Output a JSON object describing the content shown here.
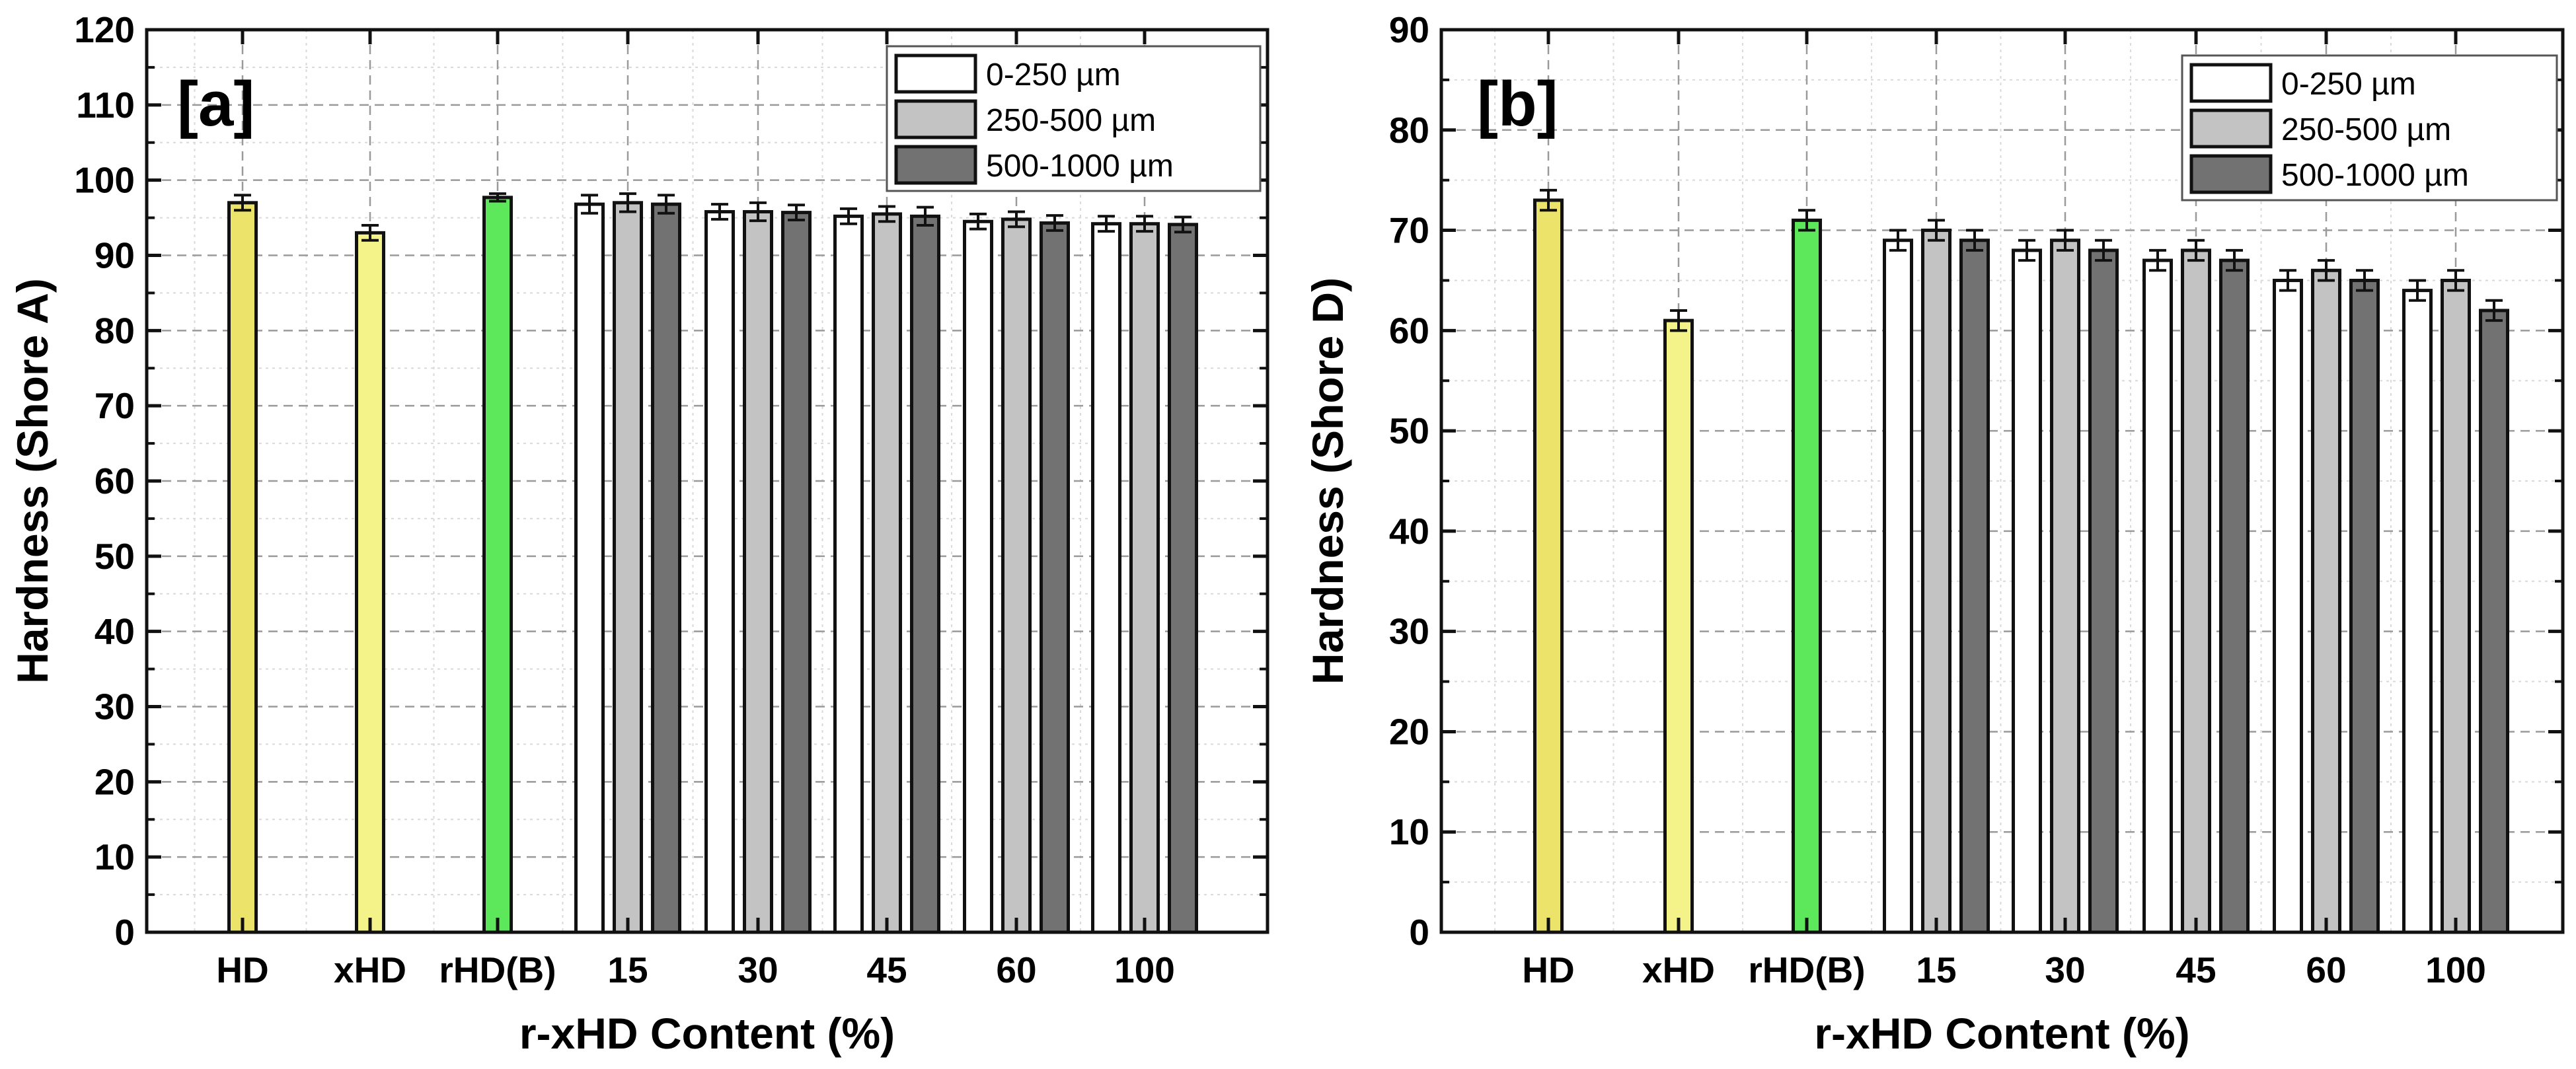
{
  "chart_data": [
    {
      "type": "bar",
      "panel_label": "[a]",
      "xlabel": "r-xHD Content (%)",
      "ylabel": "Hardness (Shore A)",
      "ylim": [
        0,
        120
      ],
      "yticks": [
        0,
        10,
        20,
        30,
        40,
        50,
        60,
        70,
        80,
        90,
        100,
        110,
        120
      ],
      "grid": true,
      "legend_position": "top-right",
      "categories": [
        "HD",
        "xHD",
        "rHD(B)",
        "15",
        "30",
        "45",
        "60",
        "100"
      ],
      "references": [
        {
          "category": "HD",
          "value": 97,
          "error": 1.0,
          "color": "#ece36a"
        },
        {
          "category": "xHD",
          "value": 93,
          "error": 1.0,
          "color": "#f4f38a"
        },
        {
          "category": "rHD(B)",
          "value": 97.7,
          "error": 0.5,
          "color": "#5ce85a"
        }
      ],
      "series": [
        {
          "name": "0-250 µm",
          "color": "#ffffff",
          "values": [
            null,
            null,
            null,
            96.8,
            95.8,
            95.2,
            94.5,
            94.2
          ],
          "errors": [
            null,
            null,
            null,
            1.2,
            1.0,
            1.0,
            1.0,
            1.0
          ]
        },
        {
          "name": "250-500 µm",
          "color": "#c3c3c3",
          "values": [
            null,
            null,
            null,
            97.0,
            95.8,
            95.5,
            94.8,
            94.2
          ],
          "errors": [
            null,
            null,
            null,
            1.2,
            1.2,
            1.0,
            1.0,
            1.0
          ]
        },
        {
          "name": "500-1000 µm",
          "color": "#727272",
          "values": [
            null,
            null,
            null,
            96.8,
            95.7,
            95.2,
            94.3,
            94.1
          ],
          "errors": [
            null,
            null,
            null,
            1.2,
            1.0,
            1.2,
            1.0,
            1.0
          ]
        }
      ]
    },
    {
      "type": "bar",
      "panel_label": "[b]",
      "xlabel": "r-xHD Content (%)",
      "ylabel": "Hardness (Shore D)",
      "ylim": [
        0,
        90
      ],
      "yticks": [
        0,
        10,
        20,
        30,
        40,
        50,
        60,
        70,
        80,
        90
      ],
      "grid": true,
      "legend_position": "top-right",
      "categories": [
        "HD",
        "xHD",
        "rHD(B)",
        "15",
        "30",
        "45",
        "60",
        "100"
      ],
      "references": [
        {
          "category": "HD",
          "value": 73,
          "error": 1.0,
          "color": "#ece36a"
        },
        {
          "category": "xHD",
          "value": 61,
          "error": 1.0,
          "color": "#f4f38a"
        },
        {
          "category": "rHD(B)",
          "value": 71,
          "error": 1.0,
          "color": "#5ce85a"
        }
      ],
      "series": [
        {
          "name": "0-250 µm",
          "color": "#ffffff",
          "values": [
            null,
            null,
            null,
            69,
            68,
            67,
            65,
            64
          ],
          "errors": [
            null,
            null,
            null,
            1.0,
            1.0,
            1.0,
            1.0,
            1.0
          ]
        },
        {
          "name": "250-500 µm",
          "color": "#c3c3c3",
          "values": [
            null,
            null,
            null,
            70,
            69,
            68,
            66,
            65
          ],
          "errors": [
            null,
            null,
            null,
            1.0,
            1.0,
            1.0,
            1.0,
            1.0
          ]
        },
        {
          "name": "500-1000 µm",
          "color": "#727272",
          "values": [
            null,
            null,
            null,
            69,
            68,
            67,
            65,
            62
          ],
          "errors": [
            null,
            null,
            null,
            1.0,
            1.0,
            1.0,
            1.0,
            1.0
          ]
        }
      ]
    }
  ]
}
